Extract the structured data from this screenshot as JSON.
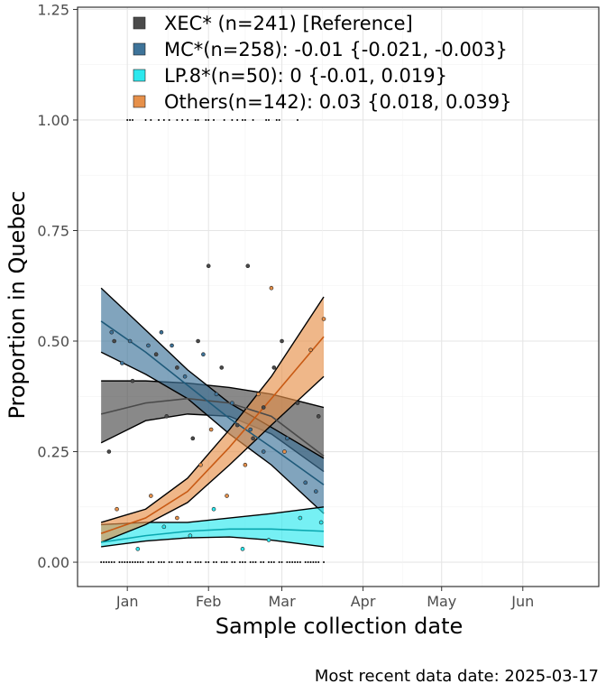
{
  "chart_data": {
    "type": "line",
    "ylabel": "Proportion in Quebec",
    "xlabel": "Sample collection date",
    "caption": "Most recent data date: 2025-03-17",
    "xlim": [
      "2024-12-13",
      "2025-06-30"
    ],
    "ylim": [
      -0.055,
      1.255
    ],
    "x_ticks": [
      {
        "date": "2025-01-01",
        "label": "Jan"
      },
      {
        "date": "2025-02-01",
        "label": "Feb"
      },
      {
        "date": "2025-03-01",
        "label": "Mar"
      },
      {
        "date": "2025-04-01",
        "label": "Apr"
      },
      {
        "date": "2025-05-01",
        "label": "May"
      },
      {
        "date": "2025-06-01",
        "label": "Jun"
      }
    ],
    "y_ticks": [
      {
        "value": 0.0,
        "label": "0.00"
      },
      {
        "value": 0.25,
        "label": "0.25"
      },
      {
        "value": 0.5,
        "label": "0.50"
      },
      {
        "value": 0.75,
        "label": "0.75"
      },
      {
        "value": 1.0,
        "label": "1.00"
      },
      {
        "value": 1.25,
        "label": "1.25"
      }
    ],
    "grid": true,
    "legend_position": "top-left",
    "series": [
      {
        "name": "XEC*",
        "legend_label": "XEC* (n=241)  [Reference]",
        "color": "#4a4a4a",
        "fill": "#4a4a4a",
        "x": [
          "2024-12-22",
          "2025-01-08",
          "2025-01-24",
          "2025-02-09",
          "2025-02-25",
          "2025-03-17"
        ],
        "fit": [
          0.335,
          0.36,
          0.37,
          0.36,
          0.33,
          0.24
        ],
        "lower": [
          0.27,
          0.32,
          0.335,
          0.33,
          0.29,
          0.205
        ],
        "upper": [
          0.41,
          0.41,
          0.405,
          0.395,
          0.38,
          0.35
        ],
        "points": [
          [
            "2024-12-27",
            0.5
          ],
          [
            "2025-01-03",
            0.41
          ],
          [
            "2025-01-12",
            0.47
          ],
          [
            "2025-01-16",
            0.33
          ],
          [
            "2025-01-20",
            0.44
          ],
          [
            "2025-01-26",
            0.28
          ],
          [
            "2025-02-01",
            0.67
          ],
          [
            "2025-02-06",
            0.44
          ],
          [
            "2025-02-12",
            0.31
          ],
          [
            "2025-02-18",
            0.28
          ],
          [
            "2025-02-22",
            0.35
          ],
          [
            "2025-03-01",
            0.5
          ],
          [
            "2025-03-07",
            0.36
          ],
          [
            "2025-03-15",
            0.33
          ],
          [
            "2024-12-25",
            0.25
          ],
          [
            "2025-01-28",
            0.5
          ],
          [
            "2025-02-16",
            0.67
          ],
          [
            "2025-02-26",
            0.44
          ]
        ]
      },
      {
        "name": "MC*",
        "legend_label": "MC*(n=258): -0.01 {-0.021, -0.003}",
        "color": "#1f5a7a",
        "fill": "#3e7399",
        "x": [
          "2024-12-22",
          "2025-01-08",
          "2025-01-24",
          "2025-02-09",
          "2025-02-25",
          "2025-03-17"
        ],
        "fit": [
          0.545,
          0.475,
          0.4,
          0.325,
          0.26,
          0.175
        ],
        "lower": [
          0.475,
          0.425,
          0.37,
          0.29,
          0.22,
          0.11
        ],
        "upper": [
          0.62,
          0.525,
          0.435,
          0.36,
          0.305,
          0.235
        ],
        "points": [
          [
            "2024-12-26",
            0.52
          ],
          [
            "2025-01-02",
            0.5
          ],
          [
            "2025-01-09",
            0.49
          ],
          [
            "2025-01-14",
            0.52
          ],
          [
            "2025-01-18",
            0.49
          ],
          [
            "2025-01-23",
            0.42
          ],
          [
            "2025-01-30",
            0.47
          ],
          [
            "2025-02-04",
            0.38
          ],
          [
            "2025-02-10",
            0.36
          ],
          [
            "2025-02-17",
            0.3
          ],
          [
            "2025-02-22",
            0.25
          ],
          [
            "2025-03-03",
            0.28
          ],
          [
            "2025-03-10",
            0.18
          ],
          [
            "2025-03-14",
            0.16
          ],
          [
            "2024-12-30",
            0.45
          ]
        ]
      },
      {
        "name": "LP.8*",
        "legend_label": "LP.8*(n=50): 0 {-0.01, 0.019}",
        "color": "#0aa8b0",
        "fill": "#2de8ee",
        "x": [
          "2024-12-22",
          "2025-01-08",
          "2025-01-24",
          "2025-02-09",
          "2025-02-25",
          "2025-03-17"
        ],
        "fit": [
          0.045,
          0.06,
          0.07,
          0.075,
          0.075,
          0.07
        ],
        "lower": [
          0.035,
          0.048,
          0.055,
          0.057,
          0.05,
          0.035
        ],
        "upper": [
          0.085,
          0.09,
          0.09,
          0.1,
          0.11,
          0.125
        ],
        "points": [
          [
            "2025-01-05",
            0.03
          ],
          [
            "2025-01-15",
            0.08
          ],
          [
            "2025-01-25",
            0.06
          ],
          [
            "2025-02-03",
            0.12
          ],
          [
            "2025-02-14",
            0.03
          ],
          [
            "2025-02-24",
            0.05
          ],
          [
            "2025-03-08",
            0.1
          ],
          [
            "2025-03-16",
            0.09
          ]
        ]
      },
      {
        "name": "Others",
        "legend_label": "Others(n=142): 0.03 {0.018, 0.039}",
        "color": "#c85a14",
        "fill": "#e6904a",
        "x": [
          "2024-12-22",
          "2025-01-08",
          "2025-01-24",
          "2025-02-09",
          "2025-02-25",
          "2025-03-17"
        ],
        "fit": [
          0.065,
          0.1,
          0.16,
          0.26,
          0.37,
          0.51
        ],
        "lower": [
          0.045,
          0.085,
          0.135,
          0.22,
          0.31,
          0.42
        ],
        "upper": [
          0.09,
          0.12,
          0.19,
          0.3,
          0.42,
          0.6
        ],
        "points": [
          [
            "2024-12-28",
            0.12
          ],
          [
            "2025-01-10",
            0.15
          ],
          [
            "2025-01-20",
            0.1
          ],
          [
            "2025-01-29",
            0.22
          ],
          [
            "2025-02-02",
            0.3
          ],
          [
            "2025-02-08",
            0.15
          ],
          [
            "2025-02-15",
            0.22
          ],
          [
            "2025-02-20",
            0.38
          ],
          [
            "2025-02-25",
            0.62
          ],
          [
            "2025-03-02",
            0.25
          ],
          [
            "2025-03-12",
            0.48
          ],
          [
            "2025-03-17",
            0.55
          ]
        ]
      }
    ],
    "rug": {
      "color": "#000000",
      "y_top": 1.0,
      "y_bottom": 0.0,
      "top_dates": [
        "2025-01-01",
        "2025-01-02",
        "2025-01-03",
        "2025-01-08",
        "2025-01-10",
        "2025-01-13",
        "2025-01-15",
        "2025-01-17",
        "2025-01-20",
        "2025-01-22",
        "2025-01-24",
        "2025-01-27",
        "2025-01-28",
        "2025-01-31",
        "2025-02-01",
        "2025-02-03",
        "2025-02-07",
        "2025-02-10",
        "2025-02-12",
        "2025-02-14",
        "2025-02-15",
        "2025-02-18",
        "2025-02-23",
        "2025-02-24",
        "2025-02-27",
        "2025-02-28",
        "2025-03-07"
      ],
      "bottom_dates": [
        "2024-12-22",
        "2024-12-23",
        "2024-12-24",
        "2024-12-25",
        "2024-12-26",
        "2024-12-27",
        "2024-12-29",
        "2024-12-30",
        "2024-12-31",
        "2025-01-01",
        "2025-01-02",
        "2025-01-03",
        "2025-01-04",
        "2025-01-05",
        "2025-01-06",
        "2025-01-07",
        "2025-01-09",
        "2025-01-10",
        "2025-01-11",
        "2025-01-13",
        "2025-01-14",
        "2025-01-15",
        "2025-01-17",
        "2025-01-18",
        "2025-01-20",
        "2025-01-21",
        "2025-01-22",
        "2025-01-24",
        "2025-01-25",
        "2025-01-27",
        "2025-01-28",
        "2025-01-29",
        "2025-01-31",
        "2025-02-01",
        "2025-02-03",
        "2025-02-04",
        "2025-02-06",
        "2025-02-07",
        "2025-02-08",
        "2025-02-10",
        "2025-02-11",
        "2025-02-13",
        "2025-02-14",
        "2025-02-15",
        "2025-02-17",
        "2025-02-18",
        "2025-02-19",
        "2025-02-21",
        "2025-02-22",
        "2025-02-24",
        "2025-02-25",
        "2025-02-26",
        "2025-02-28",
        "2025-03-01",
        "2025-03-03",
        "2025-03-04",
        "2025-03-05",
        "2025-03-06",
        "2025-03-07",
        "2025-03-08",
        "2025-03-10",
        "2025-03-11",
        "2025-03-12",
        "2025-03-13",
        "2025-03-14",
        "2025-03-15",
        "2025-03-17"
      ]
    }
  }
}
